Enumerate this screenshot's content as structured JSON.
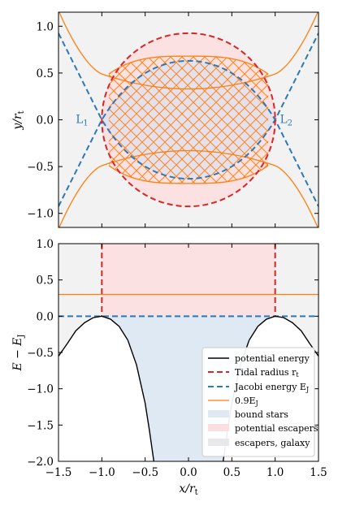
{
  "chart_data": [
    {
      "type": "line",
      "panel": "top",
      "xlim": [
        -1.5,
        1.5
      ],
      "ylim": [
        -1.15,
        1.15
      ],
      "xticks": [
        -1.5,
        -1.0,
        -0.5,
        0.0,
        0.5,
        1.0,
        1.5
      ],
      "yticks": [
        -1.0,
        -0.5,
        0.0,
        0.5,
        1.0
      ],
      "yticklabels": [
        "−1.0",
        "−0.5",
        "0.0",
        "0.5",
        "1.0"
      ],
      "ylabel": "y/r",
      "ylabel_sub": "t",
      "annotations": [
        {
          "label": "L",
          "sub": "1",
          "x": -1.0,
          "y": 0.0
        },
        {
          "label": "L",
          "sub": "2",
          "x": 1.0,
          "y": 0.0
        }
      ],
      "series": [
        {
          "name": "Tidal radius r_t",
          "shape": "circle",
          "radius": 1.0,
          "color": "#d62728"
        },
        {
          "name": "Jacobi energy E_J",
          "shape": "zero-velocity curve",
          "color": "#1f77b4",
          "points": [
            [
              -1.5,
              0.92
            ],
            [
              -1.0,
              0.0
            ],
            [
              -0.5,
              -0.52
            ],
            [
              0.0,
              -0.63
            ],
            [
              0.5,
              -0.52
            ],
            [
              1.0,
              0.0
            ],
            [
              1.5,
              0.92
            ]
          ]
        },
        {
          "name": "0.9E_J",
          "shape": "zero-velocity curve",
          "color": "#ff7f0e",
          "points": [
            [
              -1.5,
              1.04
            ],
            [
              -1.0,
              0.4
            ],
            [
              -0.5,
              0.63
            ],
            [
              0.0,
              0.68
            ],
            [
              0.5,
              0.63
            ],
            [
              1.0,
              0.4
            ],
            [
              1.5,
              1.04
            ]
          ]
        }
      ],
      "legend": "none",
      "grid": false
    },
    {
      "type": "line",
      "panel": "bottom",
      "xlim": [
        -1.5,
        1.5
      ],
      "ylim": [
        -2.0,
        1.0
      ],
      "xticks": [
        -1.5,
        -1.0,
        -0.5,
        0.0,
        0.5,
        1.0,
        1.5
      ],
      "xticklabels": [
        "−1.5",
        "−1.0",
        "−0.5",
        "0.0",
        "0.5",
        "1.0",
        "1.5"
      ],
      "yticks": [
        -2.0,
        -1.5,
        -1.0,
        -0.5,
        0.0,
        0.5,
        1.0
      ],
      "yticklabels": [
        "−2.0",
        "−1.5",
        "−1.0",
        "−0.5",
        "0.0",
        "0.5",
        "1.0"
      ],
      "xlabel": "x/r",
      "xlabel_sub": "t",
      "ylabel": "E − E",
      "ylabel_sub": "J",
      "series": [
        {
          "name": "potential energy",
          "color": "#000000",
          "x": [
            -1.5,
            -1.4,
            -1.3,
            -1.2,
            -1.1,
            -1.0,
            -0.9,
            -0.8,
            -0.7,
            -0.6,
            -0.5,
            -0.45,
            -0.4,
            0.4,
            0.45,
            0.5,
            0.6,
            0.7,
            0.8,
            0.9,
            1.0,
            1.1,
            1.2,
            1.3,
            1.4,
            1.5
          ],
          "y": [
            -0.55,
            -0.38,
            -0.2,
            -0.09,
            -0.02,
            0.0,
            -0.04,
            -0.14,
            -0.33,
            -0.67,
            -1.2,
            -1.58,
            -2.0,
            -2.0,
            -1.58,
            -1.2,
            -0.67,
            -0.33,
            -0.14,
            -0.04,
            0.0,
            -0.02,
            -0.09,
            -0.2,
            -0.38,
            -0.55
          ]
        },
        {
          "name": "Tidal radius r",
          "name_sub": "t",
          "color": "#d62728",
          "x": [
            -1.0,
            1.0
          ],
          "ylim_span": [
            0.0,
            1.0
          ]
        },
        {
          "name": "Jacobi energy E",
          "name_sub": "J",
          "color": "#1f77b4",
          "y": 0.0
        },
        {
          "name": "0.9E",
          "name_sub": "J",
          "color": "#ff7f0e",
          "y": 0.3
        }
      ],
      "regions": [
        {
          "name": "bound stars",
          "color": "#dfe9f4"
        },
        {
          "name": "potential escapers",
          "color": "#fbdfe0"
        },
        {
          "name": "escapers, galaxy",
          "color": "#e8e8eb"
        }
      ],
      "legend": "bottom-right",
      "grid": false
    }
  ]
}
